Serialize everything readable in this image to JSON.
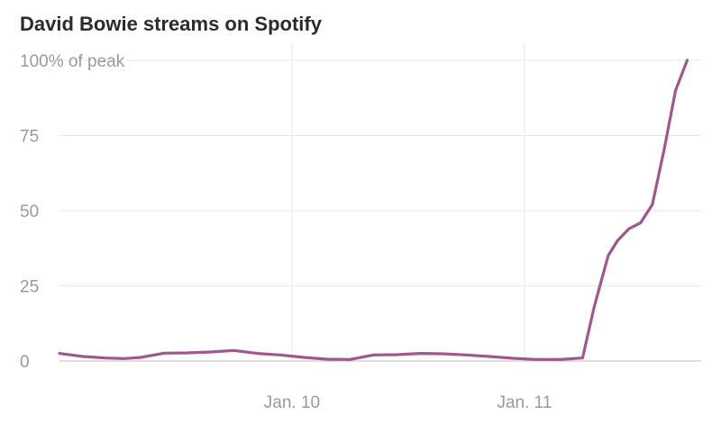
{
  "chart_data": {
    "type": "line",
    "title": "David Bowie streams on Spotify",
    "ylabel": "",
    "xlabel": "",
    "ylim": [
      0,
      100
    ],
    "y_ticks": [
      {
        "value": 0,
        "label": "0"
      },
      {
        "value": 25,
        "label": "25"
      },
      {
        "value": 50,
        "label": "50"
      },
      {
        "value": 75,
        "label": "75"
      },
      {
        "value": 100,
        "label": "100% of peak"
      }
    ],
    "xlim": [
      0,
      27.6
    ],
    "x_ticks": [
      {
        "value": 10,
        "label": "Jan. 10"
      },
      {
        "value": 20,
        "label": "Jan. 11"
      }
    ],
    "grid": true,
    "legend": "none",
    "series": [
      {
        "color": "#a0578f",
        "x": [
          0,
          1,
          2,
          2.8,
          3.5,
          4.5,
          5.5,
          6.5,
          7.5,
          8.5,
          9.5,
          10.5,
          11.5,
          12.5,
          13.5,
          14.5,
          15.5,
          16.5,
          17.5,
          18.5,
          19.5,
          20.5,
          21.5,
          22.5,
          23.0,
          23.6,
          24.0,
          24.5,
          25.0,
          25.5,
          26.0,
          26.5,
          27.0
        ],
        "values": [
          2.5,
          1.5,
          1.0,
          0.8,
          1.2,
          2.6,
          2.7,
          3.0,
          3.5,
          2.5,
          2.0,
          1.2,
          0.6,
          0.5,
          2.0,
          2.1,
          2.5,
          2.4,
          2.0,
          1.5,
          0.9,
          0.5,
          0.5,
          1.0,
          18.0,
          35.0,
          40.0,
          44.0,
          46.0,
          52.0,
          70.0,
          90.0,
          100.0
        ]
      }
    ]
  }
}
